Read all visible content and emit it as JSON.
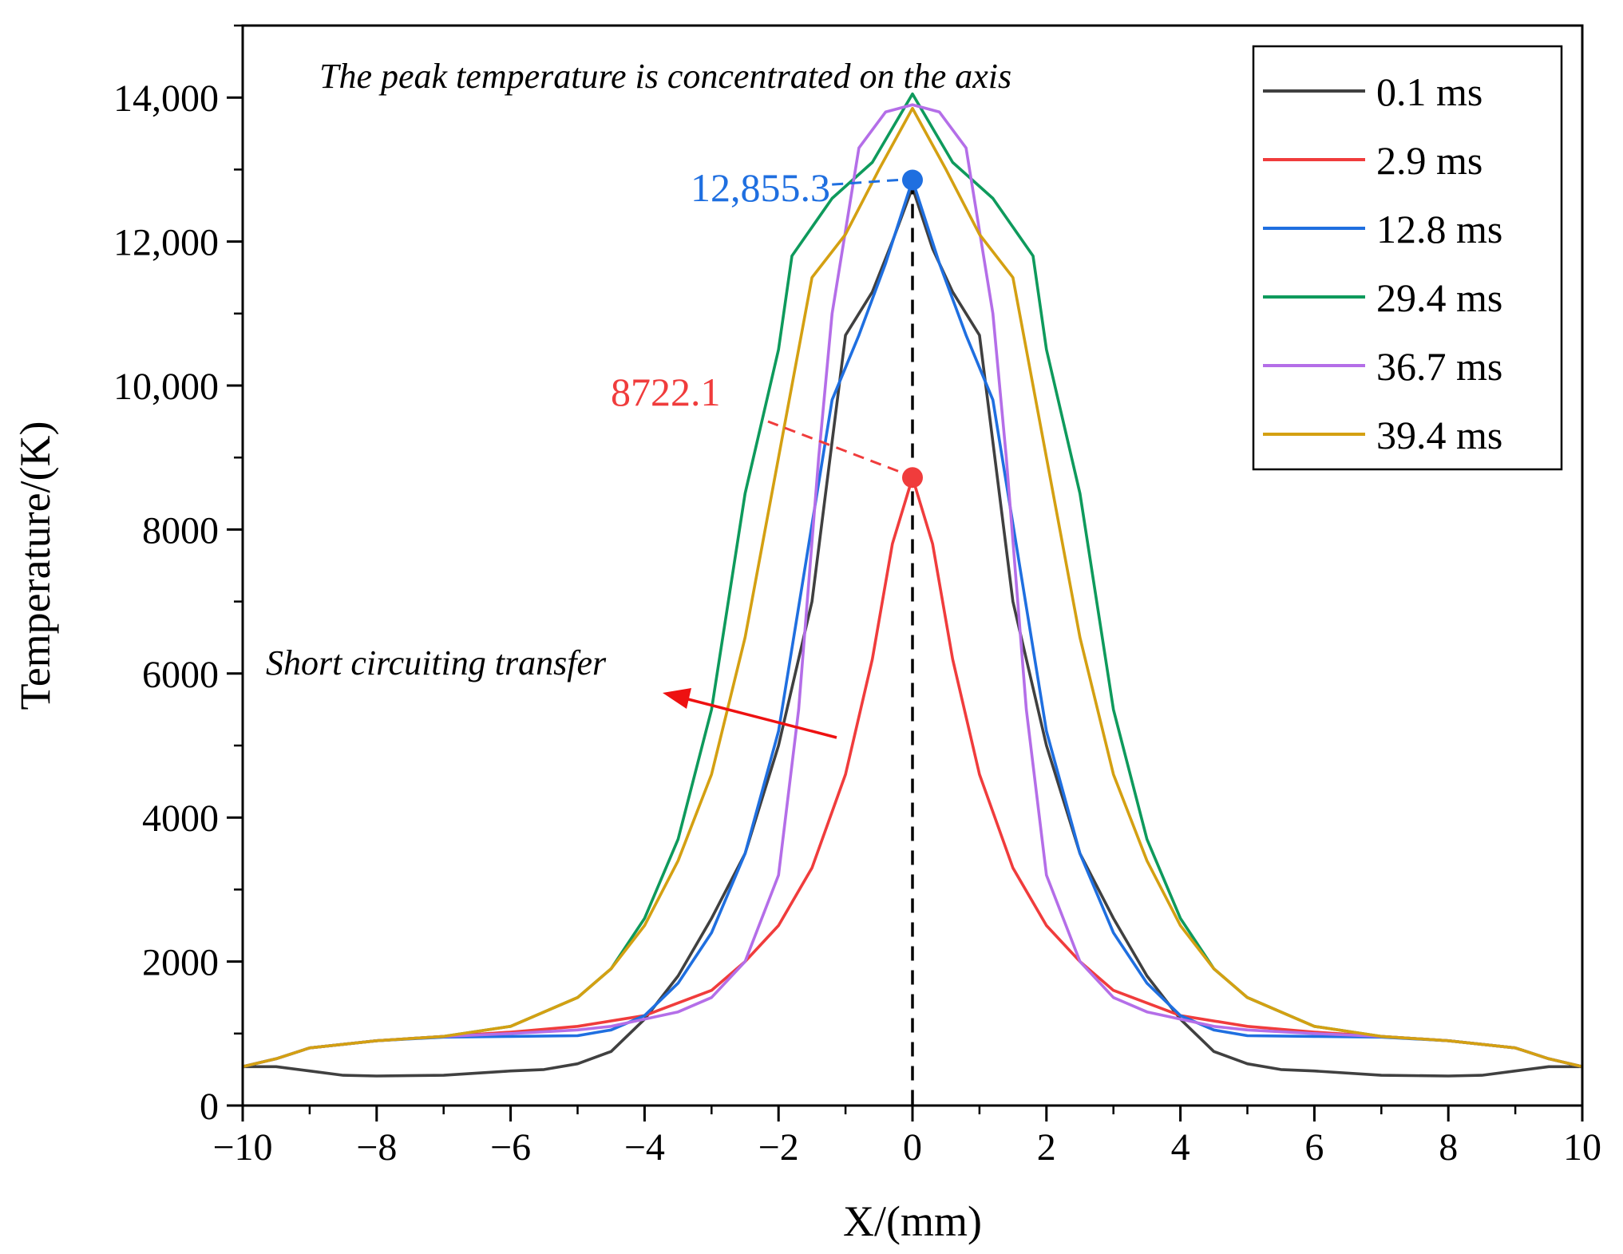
{
  "chart_data": {
    "type": "line",
    "title": "",
    "xlabel": "X/(mm)",
    "ylabel": "Temperature/(K)",
    "xlim": [
      -10,
      10
    ],
    "ylim": [
      0,
      15000
    ],
    "xticks": [
      -10,
      -8,
      -6,
      -4,
      -2,
      0,
      2,
      4,
      6,
      8,
      10
    ],
    "xtick_labels": [
      "−10",
      "−8",
      "−6",
      "−4",
      "−2",
      "0",
      "2",
      "4",
      "6",
      "8",
      "10"
    ],
    "yticks": [
      0,
      2000,
      4000,
      6000,
      8000,
      10000,
      12000,
      14000
    ],
    "ytick_labels": [
      "0",
      "2000",
      "4000",
      "6000",
      "8000",
      "10,000",
      "12,000",
      "14,000"
    ],
    "grid": false,
    "legend_position": "top-right",
    "series": [
      {
        "name": "0.1 ms",
        "color": "#404040",
        "points": [
          [
            -10,
            540
          ],
          [
            -9.5,
            540
          ],
          [
            -9,
            480
          ],
          [
            -8.5,
            420
          ],
          [
            -8,
            410
          ],
          [
            -7,
            420
          ],
          [
            -6,
            480
          ],
          [
            -5.5,
            500
          ],
          [
            -5,
            580
          ],
          [
            -4.5,
            750
          ],
          [
            -4,
            1200
          ],
          [
            -3.5,
            1800
          ],
          [
            -3,
            2600
          ],
          [
            -2.5,
            3500
          ],
          [
            -2,
            5000
          ],
          [
            -1.5,
            7000
          ],
          [
            -1,
            10700
          ],
          [
            -0.6,
            11300
          ],
          [
            -0.3,
            12000
          ],
          [
            0,
            12750
          ],
          [
            0.3,
            11900
          ],
          [
            0.6,
            11300
          ],
          [
            1,
            10700
          ],
          [
            1.5,
            7000
          ],
          [
            2,
            5000
          ],
          [
            2.5,
            3500
          ],
          [
            3,
            2600
          ],
          [
            3.5,
            1800
          ],
          [
            4,
            1200
          ],
          [
            4.5,
            750
          ],
          [
            5,
            580
          ],
          [
            5.5,
            500
          ],
          [
            6,
            480
          ],
          [
            7,
            420
          ],
          [
            8,
            410
          ],
          [
            8.5,
            420
          ],
          [
            9,
            480
          ],
          [
            9.5,
            540
          ],
          [
            10,
            540
          ]
        ]
      },
      {
        "name": "2.9 ms",
        "color": "#f03c3c",
        "points": [
          [
            -10,
            540
          ],
          [
            -9.5,
            650
          ],
          [
            -9,
            800
          ],
          [
            -8,
            900
          ],
          [
            -7,
            960
          ],
          [
            -6,
            1020
          ],
          [
            -5,
            1100
          ],
          [
            -4,
            1250
          ],
          [
            -3,
            1600
          ],
          [
            -2.5,
            2000
          ],
          [
            -2,
            2500
          ],
          [
            -1.5,
            3300
          ],
          [
            -1,
            4600
          ],
          [
            -0.6,
            6200
          ],
          [
            -0.3,
            7800
          ],
          [
            0,
            8722
          ],
          [
            0.3,
            7800
          ],
          [
            0.6,
            6200
          ],
          [
            1,
            4600
          ],
          [
            1.5,
            3300
          ],
          [
            2,
            2500
          ],
          [
            2.5,
            2000
          ],
          [
            3,
            1600
          ],
          [
            4,
            1250
          ],
          [
            5,
            1100
          ],
          [
            6,
            1020
          ],
          [
            7,
            960
          ],
          [
            8,
            900
          ],
          [
            9,
            800
          ],
          [
            9.5,
            650
          ],
          [
            10,
            540
          ]
        ]
      },
      {
        "name": "12.8 ms",
        "color": "#1f6fe0",
        "points": [
          [
            -10,
            540
          ],
          [
            -9.5,
            650
          ],
          [
            -9,
            800
          ],
          [
            -8,
            900
          ],
          [
            -7,
            950
          ],
          [
            -6,
            960
          ],
          [
            -5,
            970
          ],
          [
            -4.5,
            1050
          ],
          [
            -4,
            1250
          ],
          [
            -3.5,
            1700
          ],
          [
            -3,
            2400
          ],
          [
            -2.5,
            3500
          ],
          [
            -2,
            5200
          ],
          [
            -1.6,
            7500
          ],
          [
            -1.2,
            9800
          ],
          [
            -0.8,
            10700
          ],
          [
            -0.4,
            11700
          ],
          [
            0,
            12855
          ],
          [
            0.4,
            11700
          ],
          [
            0.8,
            10700
          ],
          [
            1.2,
            9800
          ],
          [
            1.6,
            7500
          ],
          [
            2,
            5200
          ],
          [
            2.5,
            3500
          ],
          [
            3,
            2400
          ],
          [
            3.5,
            1700
          ],
          [
            4,
            1250
          ],
          [
            4.5,
            1050
          ],
          [
            5,
            970
          ],
          [
            6,
            960
          ],
          [
            7,
            950
          ],
          [
            8,
            900
          ],
          [
            9,
            800
          ],
          [
            9.5,
            650
          ],
          [
            10,
            540
          ]
        ]
      },
      {
        "name": "29.4 ms",
        "color": "#0e9a5c",
        "points": [
          [
            -10,
            540
          ],
          [
            -9.5,
            650
          ],
          [
            -9,
            800
          ],
          [
            -8,
            900
          ],
          [
            -7,
            960
          ],
          [
            -6,
            1100
          ],
          [
            -5,
            1500
          ],
          [
            -4.5,
            1900
          ],
          [
            -4,
            2600
          ],
          [
            -3.5,
            3700
          ],
          [
            -3,
            5500
          ],
          [
            -2.5,
            8500
          ],
          [
            -2,
            10500
          ],
          [
            -1.8,
            11800
          ],
          [
            -1.2,
            12600
          ],
          [
            -0.6,
            13100
          ],
          [
            0,
            14050
          ],
          [
            0.6,
            13100
          ],
          [
            1.2,
            12600
          ],
          [
            1.8,
            11800
          ],
          [
            2,
            10500
          ],
          [
            2.5,
            8500
          ],
          [
            3,
            5500
          ],
          [
            3.5,
            3700
          ],
          [
            4,
            2600
          ],
          [
            4.5,
            1900
          ],
          [
            5,
            1500
          ],
          [
            6,
            1100
          ],
          [
            7,
            960
          ],
          [
            8,
            900
          ],
          [
            9,
            800
          ],
          [
            9.5,
            650
          ],
          [
            10,
            540
          ]
        ]
      },
      {
        "name": "36.7 ms",
        "color": "#b46ee8",
        "points": [
          [
            -10,
            540
          ],
          [
            -9.5,
            650
          ],
          [
            -9,
            800
          ],
          [
            -8,
            900
          ],
          [
            -7,
            960
          ],
          [
            -6,
            1000
          ],
          [
            -5,
            1050
          ],
          [
            -4.5,
            1100
          ],
          [
            -4,
            1200
          ],
          [
            -3.5,
            1300
          ],
          [
            -3,
            1500
          ],
          [
            -2.5,
            2000
          ],
          [
            -2,
            3200
          ],
          [
            -1.7,
            5500
          ],
          [
            -1.4,
            9000
          ],
          [
            -1.2,
            11000
          ],
          [
            -0.8,
            13300
          ],
          [
            -0.4,
            13800
          ],
          [
            0,
            13900
          ],
          [
            0.4,
            13800
          ],
          [
            0.8,
            13300
          ],
          [
            1.2,
            11000
          ],
          [
            1.4,
            9000
          ],
          [
            1.7,
            5500
          ],
          [
            2,
            3200
          ],
          [
            2.5,
            2000
          ],
          [
            3,
            1500
          ],
          [
            3.5,
            1300
          ],
          [
            4,
            1200
          ],
          [
            4.5,
            1100
          ],
          [
            5,
            1050
          ],
          [
            6,
            1000
          ],
          [
            7,
            960
          ],
          [
            8,
            900
          ],
          [
            9,
            800
          ],
          [
            9.5,
            650
          ],
          [
            10,
            540
          ]
        ]
      },
      {
        "name": "39.4 ms",
        "color": "#d4a012",
        "points": [
          [
            -10,
            540
          ],
          [
            -9.5,
            650
          ],
          [
            -9,
            800
          ],
          [
            -8,
            900
          ],
          [
            -7,
            960
          ],
          [
            -6,
            1100
          ],
          [
            -5,
            1500
          ],
          [
            -4.5,
            1900
          ],
          [
            -4,
            2500
          ],
          [
            -3.5,
            3400
          ],
          [
            -3,
            4600
          ],
          [
            -2.5,
            6500
          ],
          [
            -2,
            9000
          ],
          [
            -1.5,
            11500
          ],
          [
            -1,
            12100
          ],
          [
            -0.5,
            13000
          ],
          [
            0,
            13850
          ],
          [
            0.5,
            13000
          ],
          [
            1,
            12100
          ],
          [
            1.5,
            11500
          ],
          [
            2,
            9000
          ],
          [
            2.5,
            6500
          ],
          [
            3,
            4600
          ],
          [
            3.5,
            3400
          ],
          [
            4,
            2500
          ],
          [
            4.5,
            1900
          ],
          [
            5,
            1500
          ],
          [
            6,
            1100
          ],
          [
            7,
            960
          ],
          [
            8,
            900
          ],
          [
            9,
            800
          ],
          [
            9.5,
            650
          ],
          [
            10,
            540
          ]
        ]
      }
    ],
    "highlighted_points": [
      {
        "label": "12,855.3",
        "x": 0,
        "y": 12855.3,
        "color": "#1f6fe0"
      },
      {
        "label": "8722.1",
        "x": 0,
        "y": 8722.1,
        "color": "#f03c3c"
      }
    ],
    "annotations": {
      "peak_note": "The peak temperature is concentrated on the axis",
      "short_circuit_note": "Short circuiting transfer",
      "arrow_color": "#ee1111"
    }
  }
}
